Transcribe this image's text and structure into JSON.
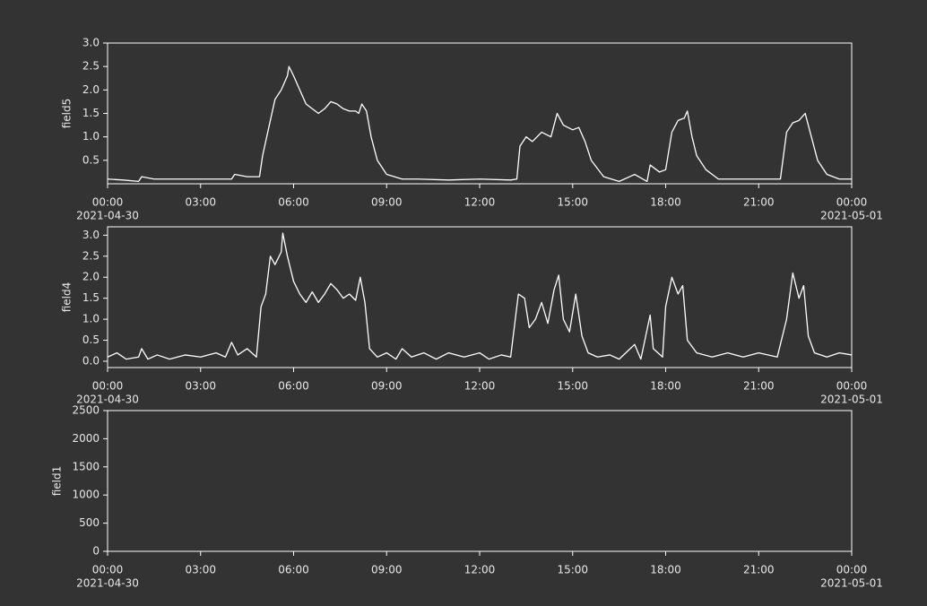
{
  "chart_data": [
    {
      "type": "line",
      "ylabel": "field5",
      "xlim": [
        0,
        24
      ],
      "ylim": [
        0,
        3
      ],
      "xticks": [
        {
          "value": 0,
          "label": "00:00"
        },
        {
          "value": 3,
          "label": "03:00"
        },
        {
          "value": 6,
          "label": "06:00"
        },
        {
          "value": 9,
          "label": "09:00"
        },
        {
          "value": 12,
          "label": "12:00"
        },
        {
          "value": 15,
          "label": "15:00"
        },
        {
          "value": 18,
          "label": "18:00"
        },
        {
          "value": 21,
          "label": "21:00"
        },
        {
          "value": 24,
          "label": "00:00"
        }
      ],
      "x_date_labels": [
        "2021-04-30",
        "2021-05-01"
      ],
      "yticks": [
        0.5,
        {
          "value": 1,
          "label": "1.0"
        },
        1.5,
        {
          "value": 2,
          "label": "2.0"
        },
        2.5,
        {
          "value": 3,
          "label": "3.0"
        }
      ],
      "x": [
        0,
        0.5,
        1,
        1.1,
        1.5,
        2,
        3,
        4,
        4.1,
        4.5,
        4.9,
        5.0,
        5.2,
        5.4,
        5.6,
        5.8,
        5.85,
        6.0,
        6.2,
        6.4,
        6.6,
        6.8,
        7.0,
        7.2,
        7.4,
        7.6,
        7.8,
        8.0,
        8.1,
        8.2,
        8.35,
        8.5,
        8.7,
        9.0,
        9.5,
        10,
        11,
        12,
        13,
        13.2,
        13.3,
        13.5,
        13.7,
        14.0,
        14.3,
        14.5,
        14.7,
        15.0,
        15.2,
        15.4,
        15.6,
        16.0,
        16.5,
        17.0,
        17.4,
        17.5,
        17.8,
        18.0,
        18.2,
        18.4,
        18.6,
        18.7,
        18.85,
        19.0,
        19.3,
        19.7,
        20,
        21,
        21.7,
        21.9,
        22.1,
        22.3,
        22.5,
        22.7,
        22.9,
        23.2,
        23.6,
        24
      ],
      "series": [
        {
          "color": "#ffffff",
          "values": [
            0.1,
            0.08,
            0.05,
            0.15,
            0.1,
            0.1,
            0.1,
            0.1,
            0.2,
            0.15,
            0.15,
            0.6,
            1.2,
            1.8,
            2.0,
            2.3,
            2.5,
            2.3,
            2.0,
            1.7,
            1.6,
            1.5,
            1.6,
            1.75,
            1.7,
            1.6,
            1.55,
            1.55,
            1.5,
            1.7,
            1.55,
            1.0,
            0.5,
            0.2,
            0.1,
            0.1,
            0.08,
            0.1,
            0.08,
            0.1,
            0.8,
            1.0,
            0.9,
            1.1,
            1.0,
            1.5,
            1.25,
            1.15,
            1.2,
            0.9,
            0.5,
            0.15,
            0.05,
            0.2,
            0.05,
            0.4,
            0.25,
            0.3,
            1.1,
            1.35,
            1.4,
            1.55,
            1.0,
            0.6,
            0.3,
            0.1,
            0.1,
            0.1,
            0.1,
            1.1,
            1.3,
            1.35,
            1.5,
            1.0,
            0.5,
            0.2,
            0.1,
            0.1
          ]
        }
      ]
    },
    {
      "type": "line",
      "ylabel": "field4",
      "xlim": [
        0,
        24
      ],
      "ylim": [
        -0.15,
        3.2
      ],
      "xticks": [
        {
          "value": 0,
          "label": "00:00"
        },
        {
          "value": 3,
          "label": "03:00"
        },
        {
          "value": 6,
          "label": "06:00"
        },
        {
          "value": 9,
          "label": "09:00"
        },
        {
          "value": 12,
          "label": "12:00"
        },
        {
          "value": 15,
          "label": "15:00"
        },
        {
          "value": 18,
          "label": "18:00"
        },
        {
          "value": 21,
          "label": "21:00"
        },
        {
          "value": 24,
          "label": "00:00"
        }
      ],
      "x_date_labels": [
        "2021-04-30",
        "2021-05-01"
      ],
      "yticks": [
        {
          "value": 0,
          "label": "0.0"
        },
        0.5,
        {
          "value": 1,
          "label": "1.0"
        },
        1.5,
        {
          "value": 2,
          "label": "2.0"
        },
        2.5,
        {
          "value": 3,
          "label": "3.0"
        }
      ],
      "x": [
        0,
        0.3,
        0.6,
        1.0,
        1.1,
        1.3,
        1.6,
        2,
        2.5,
        3,
        3.5,
        3.8,
        4.0,
        4.2,
        4.5,
        4.8,
        4.95,
        5.1,
        5.25,
        5.4,
        5.6,
        5.65,
        5.8,
        6.0,
        6.2,
        6.4,
        6.6,
        6.8,
        7.0,
        7.2,
        7.4,
        7.6,
        7.8,
        8.0,
        8.15,
        8.3,
        8.45,
        8.7,
        9.0,
        9.3,
        9.5,
        9.8,
        10.2,
        10.6,
        11,
        11.5,
        12,
        12.3,
        12.7,
        13.0,
        13.25,
        13.45,
        13.6,
        13.8,
        14.0,
        14.2,
        14.4,
        14.55,
        14.7,
        14.9,
        15.1,
        15.3,
        15.5,
        15.8,
        16.2,
        16.5,
        17.0,
        17.2,
        17.5,
        17.6,
        17.9,
        18.0,
        18.2,
        18.4,
        18.55,
        18.7,
        19.0,
        19.5,
        20,
        20.5,
        21,
        21.6,
        21.9,
        22.1,
        22.3,
        22.45,
        22.6,
        22.8,
        23.2,
        23.6,
        24
      ],
      "series": [
        {
          "color": "#ffffff",
          "values": [
            0.1,
            0.2,
            0.05,
            0.1,
            0.3,
            0.05,
            0.15,
            0.05,
            0.15,
            0.1,
            0.2,
            0.1,
            0.45,
            0.15,
            0.3,
            0.1,
            1.3,
            1.6,
            2.5,
            2.3,
            2.6,
            3.05,
            2.5,
            1.9,
            1.6,
            1.4,
            1.65,
            1.4,
            1.6,
            1.85,
            1.7,
            1.5,
            1.6,
            1.45,
            2.0,
            1.4,
            0.3,
            0.1,
            0.2,
            0.05,
            0.3,
            0.1,
            0.2,
            0.05,
            0.2,
            0.1,
            0.2,
            0.05,
            0.15,
            0.1,
            1.6,
            1.5,
            0.8,
            1.0,
            1.4,
            0.9,
            1.7,
            2.05,
            1.0,
            0.7,
            1.6,
            0.6,
            0.2,
            0.1,
            0.15,
            0.05,
            0.4,
            0.05,
            1.1,
            0.3,
            0.1,
            1.3,
            2.0,
            1.6,
            1.8,
            0.5,
            0.2,
            0.1,
            0.2,
            0.1,
            0.2,
            0.1,
            1.0,
            2.1,
            1.5,
            1.8,
            0.6,
            0.2,
            0.1,
            0.2,
            0.15
          ]
        }
      ]
    },
    {
      "type": "line",
      "ylabel": "field1",
      "xlim": [
        0,
        24
      ],
      "ylim": [
        0,
        2500
      ],
      "xticks": [
        {
          "value": 0,
          "label": "00:00"
        },
        {
          "value": 3,
          "label": "03:00"
        },
        {
          "value": 6,
          "label": "06:00"
        },
        {
          "value": 9,
          "label": "09:00"
        },
        {
          "value": 12,
          "label": "12:00"
        },
        {
          "value": 15,
          "label": "15:00"
        },
        {
          "value": 18,
          "label": "18:00"
        },
        {
          "value": 21,
          "label": "21:00"
        },
        {
          "value": 24,
          "label": "00:00"
        }
      ],
      "x_date_labels": [
        "2021-04-30",
        "2021-05-01"
      ],
      "yticks": [
        0,
        500,
        1000,
        1500,
        2000,
        2500
      ]
    }
  ]
}
